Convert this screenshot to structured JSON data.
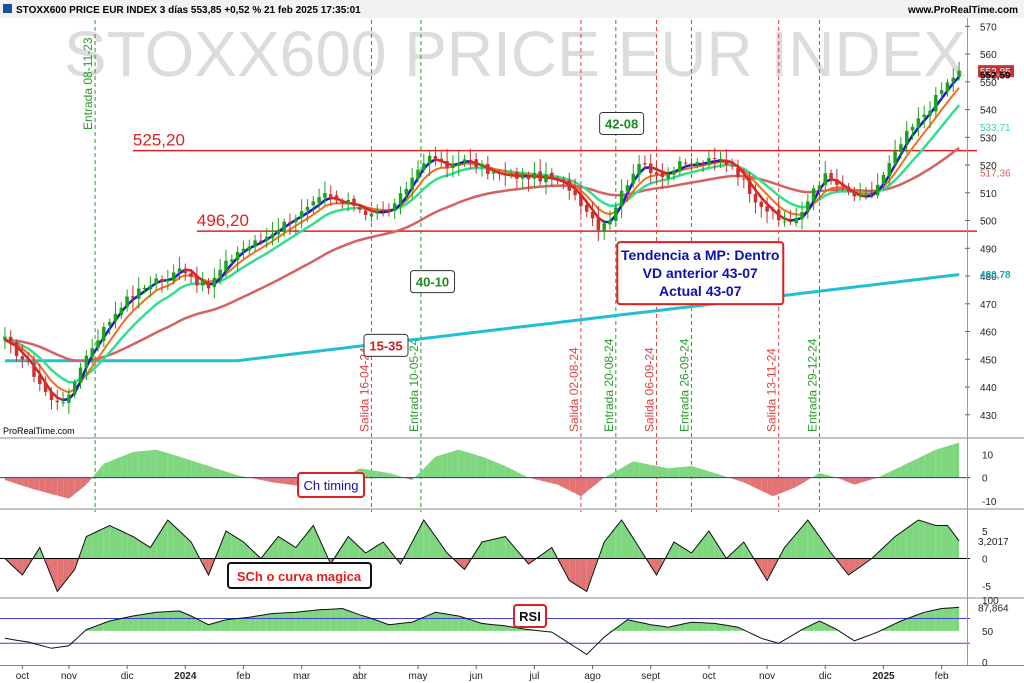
{
  "header": {
    "title": "STOXX600 PRICE EUR INDEX 3 días 553,85 +0,52 % 21 feb 2025 17:35:01",
    "site": "www.ProRealTime.com",
    "watermark": "STOXX600 PRICE EUR INDEX",
    "source_label": "ProRealTime.com"
  },
  "colors": {
    "up": "#1aa31a",
    "down": "#c83232",
    "ma_blue": "#1020c8",
    "ma_red": "#e02020",
    "ma_orange": "#f07020",
    "ma_green": "#30e090",
    "ma_brown": "#d86060",
    "ma_cyan": "#20c0d0",
    "hline": "#e02020",
    "vline_green": "#2a9a2a",
    "vline_red": "#e04040",
    "fill_pos": "#7ed77e",
    "fill_neg": "#e47474"
  },
  "chart_data": [
    {
      "type": "line",
      "title": "STOXX600 PRICE EUR INDEX",
      "ylim": [
        422,
        573
      ],
      "x_months": [
        {
          "label": "oct",
          "i": 3
        },
        {
          "label": "nov",
          "i": 11
        },
        {
          "label": "dic",
          "i": 21
        },
        {
          "label": "2024",
          "i": 31,
          "bold": true
        },
        {
          "label": "feb",
          "i": 41
        },
        {
          "label": "mar",
          "i": 51
        },
        {
          "label": "abr",
          "i": 61
        },
        {
          "label": "may",
          "i": 71
        },
        {
          "label": "jun",
          "i": 81
        },
        {
          "label": "jul",
          "i": 91
        },
        {
          "label": "ago",
          "i": 101
        },
        {
          "label": "sept",
          "i": 111
        },
        {
          "label": "oct",
          "i": 121
        },
        {
          "label": "nov",
          "i": 131
        },
        {
          "label": "dic",
          "i": 141
        },
        {
          "label": "2025",
          "i": 151,
          "bold": true
        },
        {
          "label": "feb",
          "i": 161
        }
      ],
      "yticks": [
        430,
        440,
        450,
        460,
        470,
        480,
        490,
        500,
        510,
        520,
        530,
        540,
        550,
        560,
        570
      ],
      "close_anchors": [
        [
          0,
          457
        ],
        [
          4,
          448
        ],
        [
          8,
          435
        ],
        [
          11,
          436
        ],
        [
          13,
          448
        ],
        [
          16,
          458
        ],
        [
          20,
          470
        ],
        [
          24,
          476
        ],
        [
          26,
          479
        ],
        [
          28,
          478
        ],
        [
          30,
          484
        ],
        [
          33,
          478
        ],
        [
          35,
          476
        ],
        [
          37,
          482
        ],
        [
          40,
          489
        ],
        [
          44,
          493
        ],
        [
          48,
          499
        ],
        [
          52,
          504
        ],
        [
          55,
          509
        ],
        [
          58,
          506
        ],
        [
          60,
          506
        ],
        [
          62,
          503
        ],
        [
          65,
          503
        ],
        [
          67,
          505
        ],
        [
          69,
          512
        ],
        [
          72,
          522
        ],
        [
          74,
          522
        ],
        [
          76,
          519
        ],
        [
          78,
          522
        ],
        [
          81,
          520
        ],
        [
          84,
          517
        ],
        [
          87,
          516
        ],
        [
          90,
          516
        ],
        [
          94,
          515
        ],
        [
          97,
          512
        ],
        [
          100,
          504
        ],
        [
          102,
          498
        ],
        [
          104,
          501
        ],
        [
          106,
          510
        ],
        [
          108,
          518
        ],
        [
          110,
          520
        ],
        [
          112,
          517
        ],
        [
          114,
          517
        ],
        [
          116,
          520
        ],
        [
          118,
          520
        ],
        [
          120,
          521
        ],
        [
          123,
          522
        ],
        [
          125,
          520
        ],
        [
          127,
          514
        ],
        [
          129,
          508
        ],
        [
          131,
          504
        ],
        [
          133,
          500
        ],
        [
          135,
          500
        ],
        [
          137,
          502
        ],
        [
          139,
          512
        ],
        [
          141,
          516
        ],
        [
          143,
          513
        ],
        [
          145,
          510
        ],
        [
          147,
          508
        ],
        [
          149,
          510
        ],
        [
          151,
          516
        ],
        [
          153,
          524
        ],
        [
          155,
          531
        ],
        [
          157,
          536
        ],
        [
          159,
          541
        ],
        [
          161,
          547
        ],
        [
          163,
          552
        ],
        [
          164,
          554
        ]
      ],
      "candle_count": 165,
      "hlines": [
        {
          "value": 525.2,
          "label": "525,20",
          "start_i": 22
        },
        {
          "value": 496.2,
          "label": "496,20",
          "start_i": 33
        }
      ],
      "vlines": [
        {
          "i": 15.5,
          "label": "Entrada 08-11-23",
          "kind": "entry"
        },
        {
          "i": 63,
          "label": "Salida 16-04-24",
          "kind": "exit"
        },
        {
          "i": 71.5,
          "label": "Entrada 10-05-24",
          "kind": "entry"
        },
        {
          "i": 99,
          "label": "Salida 02-08-24",
          "kind": "exit"
        },
        {
          "i": 105,
          "label": "Entrada 20-08-24",
          "kind": "entry"
        },
        {
          "i": 112,
          "label": "Salida 06-09-24",
          "kind": "exit"
        },
        {
          "i": 118,
          "label": "Entrada 26-09-24",
          "kind": "entry"
        },
        {
          "i": 133,
          "label": "Salida 13-11-24",
          "kind": "exit"
        },
        {
          "i": 140,
          "label": "Entrada 29-12-24",
          "kind": "entry"
        }
      ],
      "price_labels": [
        {
          "value": 554.35,
          "text": "554,35",
          "color": "#c83232"
        },
        {
          "value": 553.85,
          "text": "553,85",
          "color": "#ffffff",
          "bg": "#c83232"
        },
        {
          "value": 552.59,
          "text": "552,59",
          "color": "#000000",
          "bold": true
        },
        {
          "value": 533.71,
          "text": "533,71",
          "color": "#30e090"
        },
        {
          "value": 517.36,
          "text": "517,36",
          "color": "#d86060"
        },
        {
          "value": 480.78,
          "text": "480,78",
          "color": "#20a0b0",
          "bold": true
        }
      ],
      "annotations": [
        {
          "text": "42-08",
          "i": 106,
          "value": 535,
          "style": "green-box"
        },
        {
          "text": "40-10",
          "i": 73.5,
          "value": 478,
          "style": "green-box"
        },
        {
          "text": "15-35",
          "i": 65.5,
          "value": 455,
          "style": "red-box"
        }
      ],
      "info_box": {
        "lines": [
          "Tendencia a MP: Dentro",
          "VD anterior 43-07",
          "Actual 43-07"
        ],
        "i": 119,
        "value": 485
      }
    },
    {
      "type": "area",
      "label": "Ch timing",
      "ylim": [
        -13,
        17
      ],
      "yticks": [
        {
          "v": 10,
          "t": "10"
        },
        {
          "v": 0,
          "t": "0"
        },
        {
          "v": -10,
          "t": "-10"
        }
      ],
      "anchors": [
        [
          0,
          -1
        ],
        [
          5,
          -5
        ],
        [
          11,
          -9
        ],
        [
          14,
          -3
        ],
        [
          17,
          6
        ],
        [
          22,
          11
        ],
        [
          26,
          12
        ],
        [
          30,
          9
        ],
        [
          35,
          5
        ],
        [
          40,
          1
        ],
        [
          46,
          -2
        ],
        [
          52,
          -4
        ],
        [
          56,
          -3
        ],
        [
          61,
          4
        ],
        [
          66,
          2
        ],
        [
          70,
          -1
        ],
        [
          74,
          9
        ],
        [
          78,
          12
        ],
        [
          82,
          9
        ],
        [
          86,
          5
        ],
        [
          90,
          0
        ],
        [
          95,
          -3
        ],
        [
          99,
          -8
        ],
        [
          103,
          0
        ],
        [
          108,
          7
        ],
        [
          114,
          4
        ],
        [
          118,
          5
        ],
        [
          122,
          2
        ],
        [
          127,
          -2
        ],
        [
          132,
          -8
        ],
        [
          136,
          -4
        ],
        [
          140,
          2
        ],
        [
          143,
          0
        ],
        [
          146,
          -3
        ],
        [
          150,
          0
        ],
        [
          155,
          6
        ],
        [
          160,
          12
        ],
        [
          164,
          15
        ]
      ]
    },
    {
      "type": "area",
      "label": "SCh o curva magica",
      "ylim": [
        -7,
        9
      ],
      "yticks": [
        {
          "v": 5,
          "t": "5"
        },
        {
          "v": 0,
          "t": "0"
        },
        {
          "v": -5,
          "t": "-5"
        }
      ],
      "last_label": "3,2017",
      "anchors": [
        [
          0,
          0
        ],
        [
          3,
          -3
        ],
        [
          6,
          2
        ],
        [
          9,
          -6
        ],
        [
          12,
          -2
        ],
        [
          14,
          4
        ],
        [
          18,
          6
        ],
        [
          22,
          4
        ],
        [
          25,
          2
        ],
        [
          28,
          7
        ],
        [
          32,
          3
        ],
        [
          35,
          -3
        ],
        [
          38,
          5
        ],
        [
          41,
          3
        ],
        [
          44,
          0
        ],
        [
          47,
          4
        ],
        [
          50,
          2
        ],
        [
          53,
          6
        ],
        [
          56,
          -1
        ],
        [
          59,
          4
        ],
        [
          62,
          1
        ],
        [
          65,
          3
        ],
        [
          68,
          -1
        ],
        [
          72,
          7
        ],
        [
          76,
          1
        ],
        [
          79,
          -2
        ],
        [
          82,
          3
        ],
        [
          86,
          4
        ],
        [
          90,
          -1
        ],
        [
          94,
          2
        ],
        [
          97,
          -4
        ],
        [
          100,
          -6
        ],
        [
          103,
          3
        ],
        [
          106,
          7
        ],
        [
          109,
          2
        ],
        [
          112,
          -3
        ],
        [
          115,
          3
        ],
        [
          118,
          1
        ],
        [
          121,
          5
        ],
        [
          124,
          0
        ],
        [
          127,
          3
        ],
        [
          131,
          -4
        ],
        [
          134,
          2
        ],
        [
          138,
          7
        ],
        [
          142,
          1
        ],
        [
          145,
          -3
        ],
        [
          149,
          0
        ],
        [
          153,
          4
        ],
        [
          157,
          7
        ],
        [
          160,
          6
        ],
        [
          162,
          6
        ],
        [
          164,
          3.2
        ]
      ]
    },
    {
      "type": "line",
      "label": "RSI",
      "ylim": [
        -5,
        103
      ],
      "yticks": [
        {
          "v": 100,
          "t": "100"
        },
        {
          "v": 50,
          "t": "50"
        },
        {
          "v": 0,
          "t": "0"
        }
      ],
      "bands": [
        30,
        70
      ],
      "last_label": "87,864",
      "anchors": [
        [
          0,
          38
        ],
        [
          4,
          32
        ],
        [
          8,
          22
        ],
        [
          11,
          26
        ],
        [
          14,
          52
        ],
        [
          18,
          66
        ],
        [
          22,
          74
        ],
        [
          26,
          80
        ],
        [
          30,
          82
        ],
        [
          32,
          74
        ],
        [
          35,
          60
        ],
        [
          38,
          68
        ],
        [
          42,
          72
        ],
        [
          46,
          78
        ],
        [
          50,
          80
        ],
        [
          54,
          84
        ],
        [
          58,
          86
        ],
        [
          61,
          76
        ],
        [
          63,
          70
        ],
        [
          66,
          60
        ],
        [
          70,
          64
        ],
        [
          74,
          80
        ],
        [
          78,
          74
        ],
        [
          82,
          62
        ],
        [
          86,
          58
        ],
        [
          90,
          52
        ],
        [
          94,
          48
        ],
        [
          97,
          30
        ],
        [
          100,
          12
        ],
        [
          103,
          40
        ],
        [
          107,
          68
        ],
        [
          111,
          60
        ],
        [
          114,
          56
        ],
        [
          118,
          64
        ],
        [
          122,
          62
        ],
        [
          126,
          56
        ],
        [
          130,
          38
        ],
        [
          133,
          30
        ],
        [
          137,
          52
        ],
        [
          140,
          66
        ],
        [
          143,
          52
        ],
        [
          146,
          34
        ],
        [
          150,
          48
        ],
        [
          154,
          66
        ],
        [
          158,
          80
        ],
        [
          161,
          86
        ],
        [
          164,
          88
        ]
      ]
    }
  ]
}
